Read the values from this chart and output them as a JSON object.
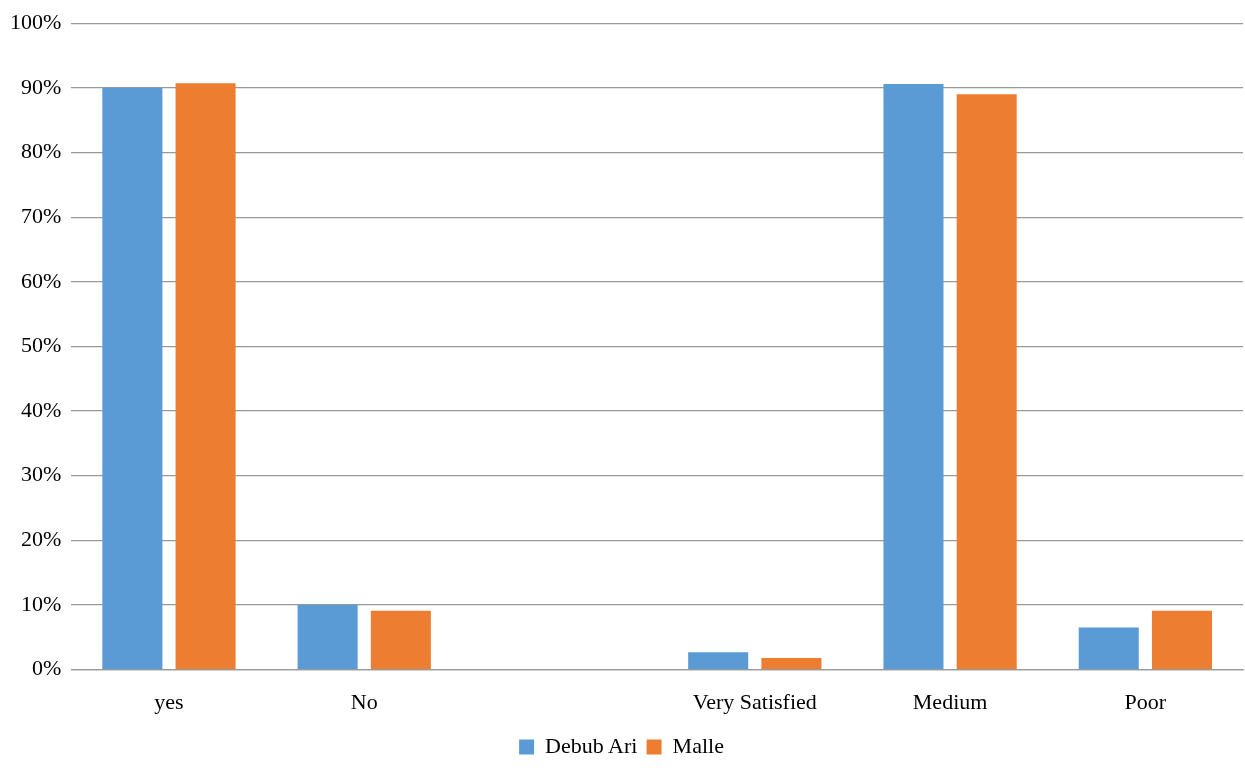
{
  "chart_data": {
    "type": "bar",
    "categories": [
      "yes",
      "No",
      null,
      "Very Satisfied",
      "Medium",
      "Poor"
    ],
    "series": [
      {
        "name": "Debub Ari",
        "color": "#5b9bd5",
        "values": [
          90,
          10,
          null,
          2.7,
          90.6,
          6.5
        ]
      },
      {
        "name": "Malle",
        "color": "#ed7d31",
        "values": [
          90.7,
          9.1,
          null,
          1.8,
          89,
          9.1
        ]
      }
    ],
    "ylim": [
      0,
      100
    ],
    "yticks": [
      {
        "value": 0,
        "label": "0%"
      },
      {
        "value": 10,
        "label": "10%"
      },
      {
        "value": 20,
        "label": "20%"
      },
      {
        "value": 30,
        "label": "30%"
      },
      {
        "value": 40,
        "label": "40%"
      },
      {
        "value": 50,
        "label": "50%"
      },
      {
        "value": 60,
        "label": "60%"
      },
      {
        "value": 70,
        "label": "70%"
      },
      {
        "value": 80,
        "label": "80%"
      },
      {
        "value": 90,
        "label": "90%"
      },
      {
        "value": 100,
        "label": "100%"
      }
    ],
    "grid": "y",
    "legend": "bottom"
  }
}
